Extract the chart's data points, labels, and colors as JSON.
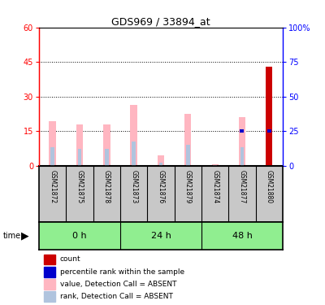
{
  "title": "GDS969 / 33894_at",
  "samples": [
    "GSM21872",
    "GSM21875",
    "GSM21878",
    "GSM21873",
    "GSM21876",
    "GSM21879",
    "GSM21874",
    "GSM21877",
    "GSM21880"
  ],
  "group_labels": [
    "0 h",
    "24 h",
    "48 h"
  ],
  "value_absent": [
    19.5,
    18.0,
    18.0,
    26.5,
    4.5,
    22.5,
    0.5,
    21.0,
    0.0
  ],
  "rank_absent": [
    8.0,
    7.5,
    7.5,
    10.5,
    1.5,
    9.0,
    0.3,
    8.0,
    0.0
  ],
  "count_val": [
    0.0,
    0.0,
    0.0,
    0.0,
    0.0,
    0.0,
    0.0,
    0.0,
    43.0
  ],
  "pct_rank_val": [
    0.0,
    0.0,
    0.0,
    0.0,
    0.0,
    0.0,
    0.0,
    15.0,
    15.0
  ],
  "left_ylim": [
    0,
    60
  ],
  "left_yticks": [
    0,
    15,
    30,
    45,
    60
  ],
  "right_ylim": [
    0,
    100
  ],
  "right_yticks": [
    0,
    25,
    50,
    75,
    100
  ],
  "color_count": "#CC0000",
  "color_pct": "#0000CC",
  "color_value_absent": "#FFB6C1",
  "color_rank_absent": "#B0C4DE",
  "sample_bg_color": "#C8C8C8",
  "legend_items": [
    {
      "color": "#CC0000",
      "label": "count"
    },
    {
      "color": "#0000CC",
      "label": "percentile rank within the sample"
    },
    {
      "color": "#FFB6C1",
      "label": "value, Detection Call = ABSENT"
    },
    {
      "color": "#B0C4DE",
      "label": "rank, Detection Call = ABSENT"
    }
  ]
}
